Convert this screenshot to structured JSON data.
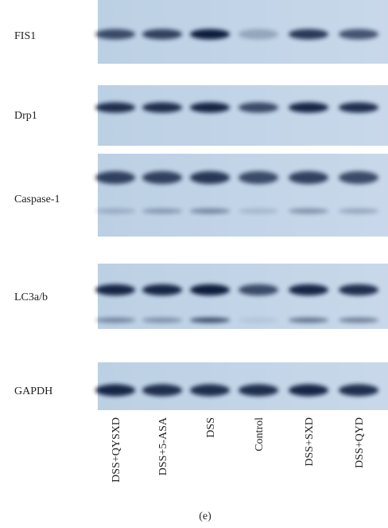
{
  "blots": [
    {
      "label": "FIS1"
    },
    {
      "label": "Drp1"
    },
    {
      "label": "Caspase-1"
    },
    {
      "label": "LC3a/b"
    },
    {
      "label": "GAPDH"
    }
  ],
  "lanes": [
    "DSS+QYSXD",
    "DSS+5-ASA",
    "DSS",
    "Control",
    "DSS+SXD",
    "DSS+QYD"
  ],
  "caption": "(e)"
}
